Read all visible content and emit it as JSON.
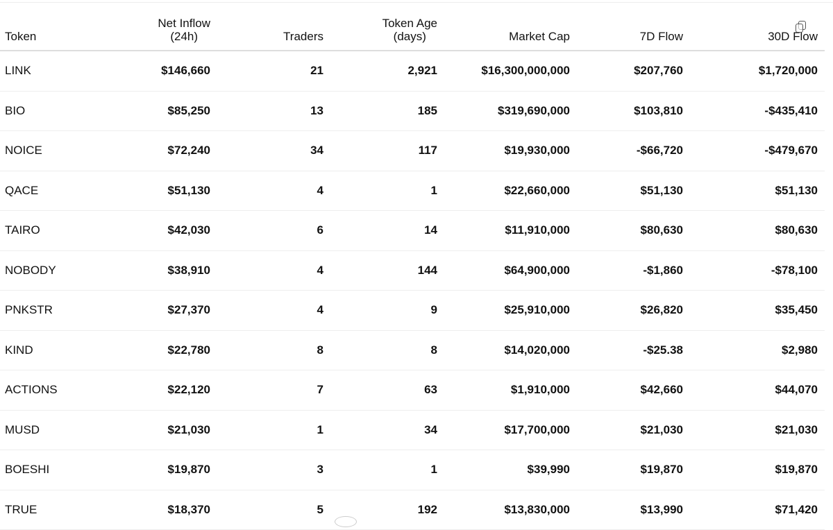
{
  "columns": {
    "token": "Token",
    "net_inflow_l1": "Net Inflow",
    "net_inflow_l2": "(24h)",
    "traders": "Traders",
    "token_age_l1": "Token Age",
    "token_age_l2": "(days)",
    "market_cap": "Market Cap",
    "flow_7d": "7D Flow",
    "flow_30d": "30D Flow"
  },
  "rows": [
    {
      "token": "LINK",
      "net_inflow": "$146,660",
      "traders": "21",
      "age": "2,921",
      "market_cap": "$16,300,000,000",
      "flow_7d": "$207,760",
      "flow_30d": "$1,720,000"
    },
    {
      "token": "BIO",
      "net_inflow": "$85,250",
      "traders": "13",
      "age": "185",
      "market_cap": "$319,690,000",
      "flow_7d": "$103,810",
      "flow_30d": "-$435,410"
    },
    {
      "token": "NOICE",
      "net_inflow": "$72,240",
      "traders": "34",
      "age": "117",
      "market_cap": "$19,930,000",
      "flow_7d": "-$66,720",
      "flow_30d": "-$479,670"
    },
    {
      "token": "QACE",
      "net_inflow": "$51,130",
      "traders": "4",
      "age": "1",
      "market_cap": "$22,660,000",
      "flow_7d": "$51,130",
      "flow_30d": "$51,130"
    },
    {
      "token": "TAIRO",
      "net_inflow": "$42,030",
      "traders": "6",
      "age": "14",
      "market_cap": "$11,910,000",
      "flow_7d": "$80,630",
      "flow_30d": "$80,630"
    },
    {
      "token": "NOBODY",
      "net_inflow": "$38,910",
      "traders": "4",
      "age": "144",
      "market_cap": "$64,900,000",
      "flow_7d": "-$1,860",
      "flow_30d": "-$78,100"
    },
    {
      "token": "PNKSTR",
      "net_inflow": "$27,370",
      "traders": "4",
      "age": "9",
      "market_cap": "$25,910,000",
      "flow_7d": "$26,820",
      "flow_30d": "$35,450"
    },
    {
      "token": "KIND",
      "net_inflow": "$22,780",
      "traders": "8",
      "age": "8",
      "market_cap": "$14,020,000",
      "flow_7d": "-$25.38",
      "flow_30d": "$2,980"
    },
    {
      "token": "ACTIONS",
      "net_inflow": "$22,120",
      "traders": "7",
      "age": "63",
      "market_cap": "$1,910,000",
      "flow_7d": "$42,660",
      "flow_30d": "$44,070"
    },
    {
      "token": "MUSD",
      "net_inflow": "$21,030",
      "traders": "1",
      "age": "34",
      "market_cap": "$17,700,000",
      "flow_7d": "$21,030",
      "flow_30d": "$21,030"
    },
    {
      "token": "BOESHI",
      "net_inflow": "$19,870",
      "traders": "3",
      "age": "1",
      "market_cap": "$39,990",
      "flow_7d": "$19,870",
      "flow_30d": "$19,870"
    },
    {
      "token": "TRUE",
      "net_inflow": "$18,370",
      "traders": "5",
      "age": "192",
      "market_cap": "$13,830,000",
      "flow_7d": "$13,990",
      "flow_30d": "$71,420"
    }
  ]
}
